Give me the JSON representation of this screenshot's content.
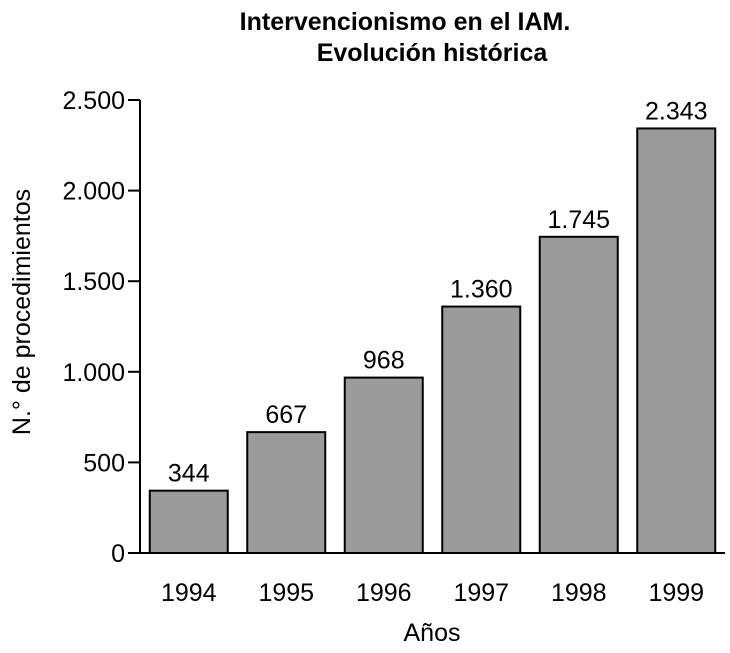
{
  "chart_data": {
    "type": "bar",
    "title": [
      "Intervencionismo en el IAM.",
      "Evolución histórica"
    ],
    "categories": [
      "1994",
      "1995",
      "1996",
      "1997",
      "1998",
      "1999"
    ],
    "values": [
      344,
      667,
      968,
      1360,
      1745,
      2343
    ],
    "value_labels": [
      "344",
      "667",
      "968",
      "1.360",
      "1.745",
      "2.343"
    ],
    "xlabel": "Años",
    "ylabel": "N.° de procedimientos",
    "ylim": [
      0,
      2500
    ],
    "yticks": [
      0,
      500,
      1000,
      1500,
      2000,
      2500
    ],
    "ytick_labels": [
      "0",
      "500",
      "1.000",
      "1.500",
      "2.000",
      "2.500"
    ],
    "grid": false,
    "colors": {
      "bar_fill": "#9b9b9b",
      "bar_stroke": "#000000"
    }
  }
}
